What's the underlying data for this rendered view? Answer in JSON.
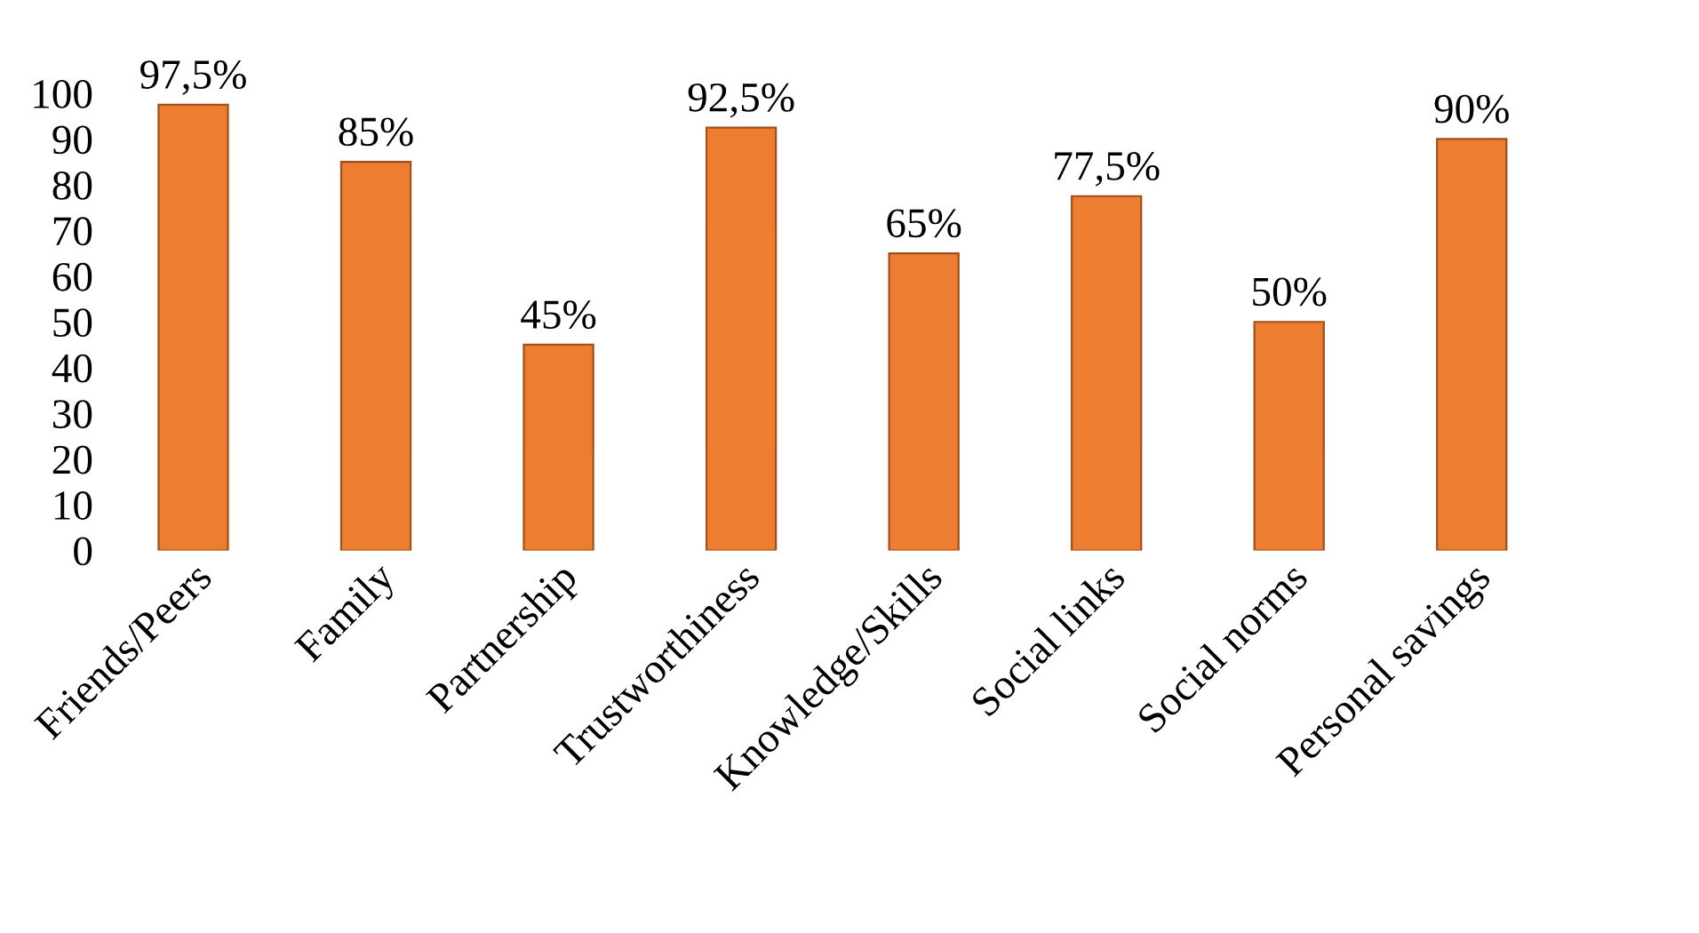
{
  "chart_data": {
    "type": "bar",
    "categories": [
      "Friends/Peers",
      "Family",
      "Partnership",
      "Trustworthiness",
      "Knowledge/Skills",
      "Social links",
      "Social norms",
      "Personal savings"
    ],
    "values": [
      97.5,
      85,
      45,
      92.5,
      65,
      77.5,
      50,
      90
    ],
    "value_labels": [
      "97,5%",
      "85%",
      "45%",
      "92,5%",
      "65%",
      "77,5%",
      "50%",
      "90%"
    ],
    "color": "#ed7d31",
    "ylim": [
      0,
      100
    ],
    "yticks": [
      0,
      10,
      20,
      30,
      40,
      50,
      60,
      70,
      80,
      90,
      100
    ],
    "grid": false,
    "legend": false
  }
}
